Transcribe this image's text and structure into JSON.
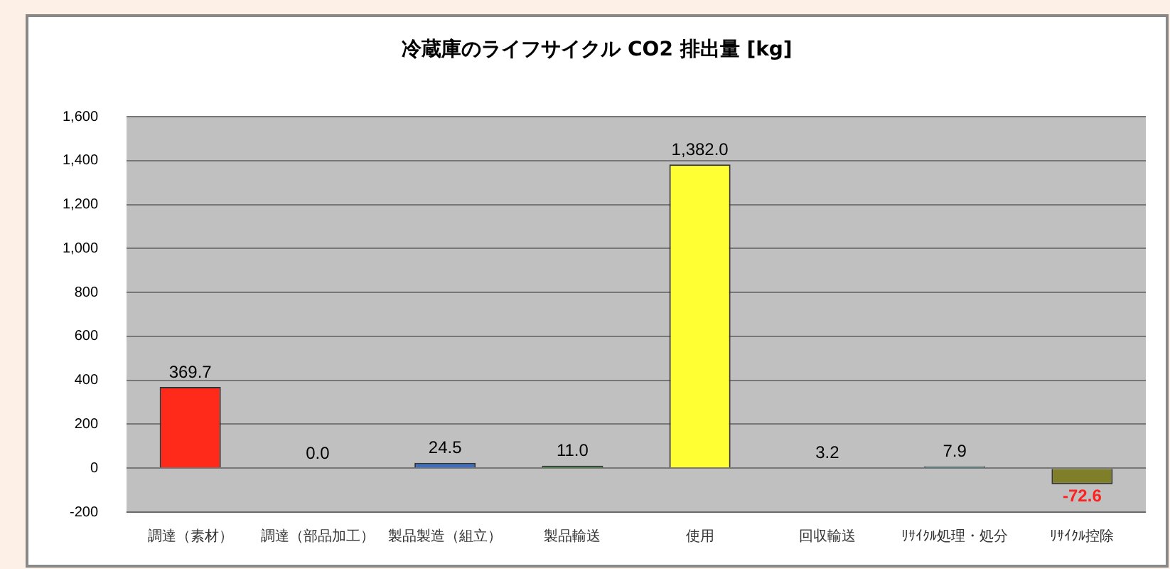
{
  "chart_data": {
    "type": "bar",
    "title": "冷蔵庫のライフサイクル CO2 排出量 [kg]",
    "categories": [
      "調達（素材）",
      "調達（部品加工）",
      "製品製造（組立）",
      "製品輸送",
      "使用",
      "回収輸送",
      "ﾘｻｲｸﾙ処理・処分",
      "ﾘｻｲｸﾙ控除"
    ],
    "values": [
      369.7,
      0.0,
      24.5,
      11.0,
      1382.0,
      3.2,
      7.9,
      -72.6
    ],
    "colors": [
      "#ff2a1a",
      "#808080",
      "#3a6fc4",
      "#2e7d32",
      "#ffff33",
      "#333333",
      "#2a8a8a",
      "#7f7f2a"
    ],
    "value_labels": [
      "369.7",
      "0.0",
      "24.5",
      "11.0",
      "1,382.0",
      "3.2",
      "7.9",
      "-72.6"
    ],
    "ylim": [
      -200,
      1600
    ],
    "yticks": [
      {
        "value": -200,
        "label": "-200"
      },
      {
        "value": 0,
        "label": "0"
      },
      {
        "value": 200,
        "label": "200"
      },
      {
        "value": 400,
        "label": "400"
      },
      {
        "value": 600,
        "label": "600"
      },
      {
        "value": 800,
        "label": "800"
      },
      {
        "value": 1000,
        "label": "1,000"
      },
      {
        "value": 1200,
        "label": "1,200"
      },
      {
        "value": 1400,
        "label": "1,400"
      },
      {
        "value": 1600,
        "label": "1,600"
      }
    ],
    "grid": "y",
    "legend": false
  }
}
